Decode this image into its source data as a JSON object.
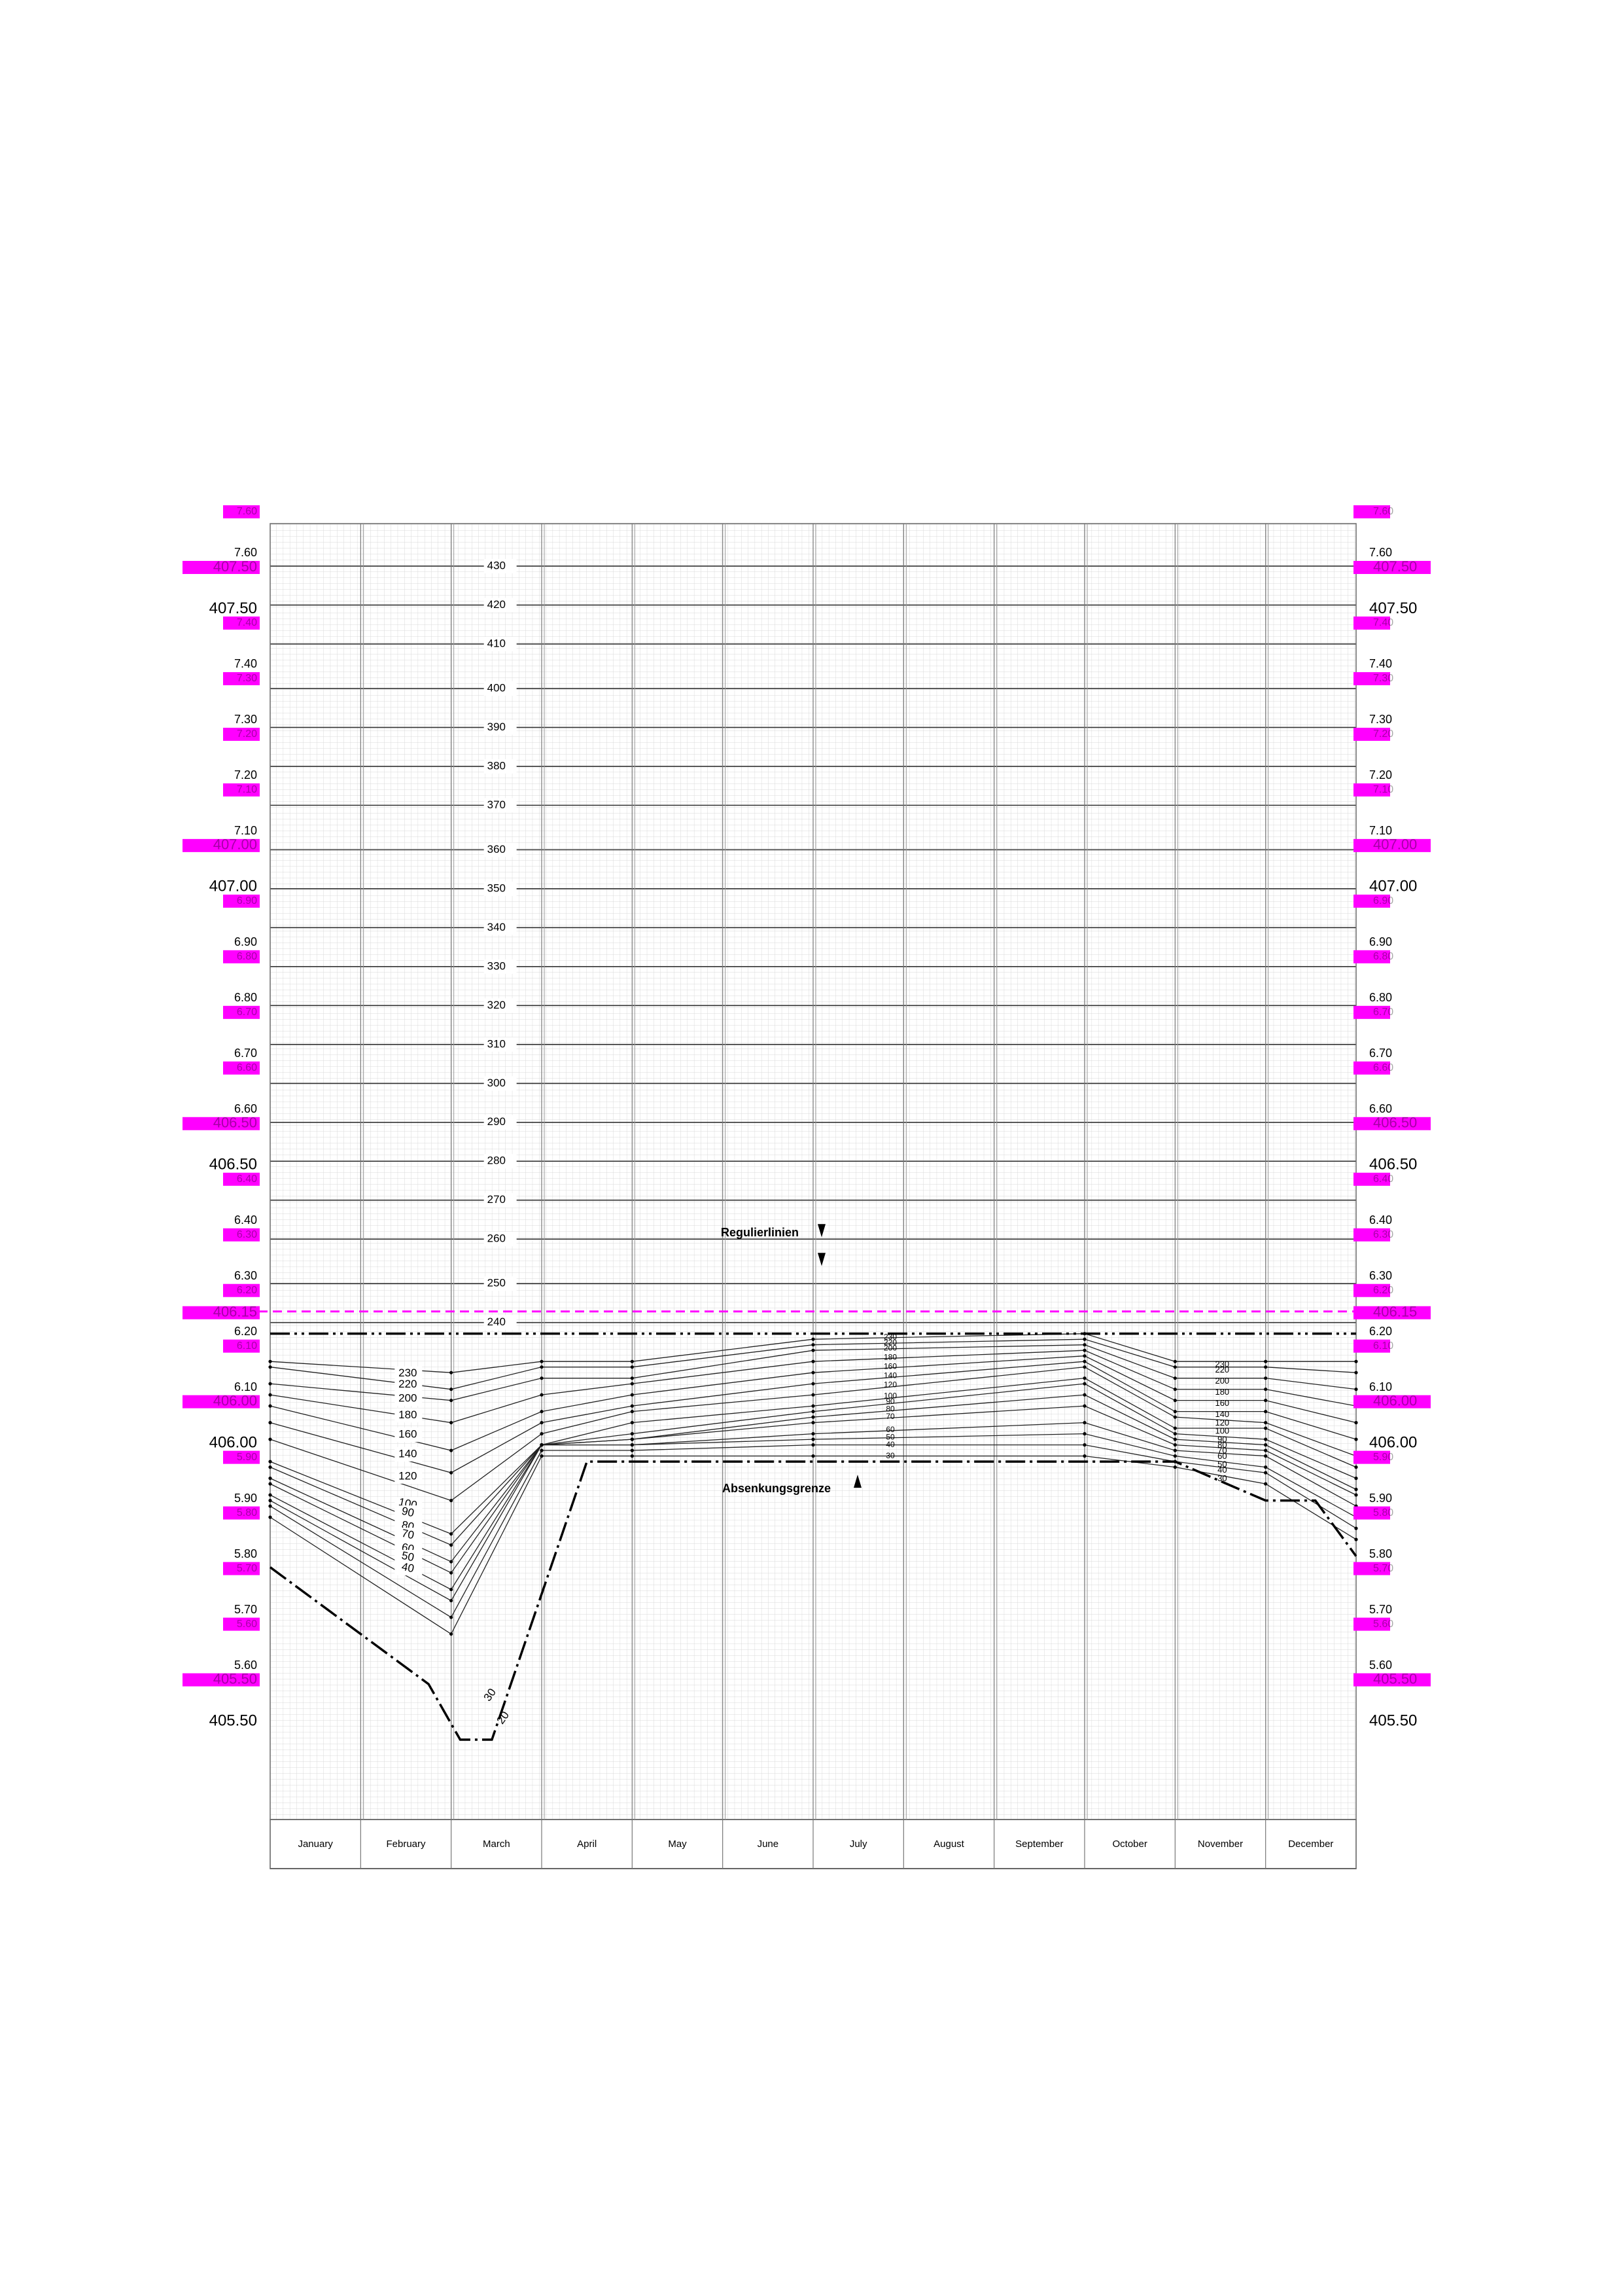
{
  "chart_data": {
    "type": "line",
    "title": "",
    "xlabel": "",
    "ylabel": "",
    "months": [
      "January",
      "February",
      "March",
      "April",
      "May",
      "June",
      "July",
      "August",
      "September",
      "October",
      "November",
      "December"
    ],
    "ylim": [
      405.3,
      407.63
    ],
    "y_axis_major_labels": [
      "7.60",
      "407.50",
      "7.40",
      "7.30",
      "7.20",
      "7.10",
      "407.00",
      "6.90",
      "6.80",
      "6.70",
      "6.60",
      "406.50",
      "6.40",
      "6.30",
      "6.20",
      "6.10",
      "406.00",
      "5.90",
      "5.80",
      "5.70",
      "5.60",
      "405.50"
    ],
    "y_axis_major_values": [
      407.6,
      407.5,
      407.4,
      407.3,
      407.2,
      407.1,
      407.0,
      406.9,
      406.8,
      406.7,
      406.6,
      406.5,
      406.4,
      406.3,
      406.2,
      406.1,
      406.0,
      405.9,
      405.8,
      405.7,
      405.6,
      405.5
    ],
    "y_axis_highlight_labels": [
      "7.60",
      "407.50",
      "7.40",
      "7.30",
      "7.20",
      "7.10",
      "407.00",
      "6.90",
      "6.80",
      "6.70",
      "6.60",
      "406.50",
      "6.40",
      "6.30",
      "6.20",
      "406.15",
      "6.10",
      "406.00",
      "5.90",
      "5.80",
      "5.70",
      "5.60",
      "405.50"
    ],
    "y_axis_highlight_values": [
      407.63,
      407.53,
      407.43,
      407.33,
      407.23,
      407.13,
      407.03,
      406.93,
      406.83,
      406.73,
      406.63,
      406.53,
      406.43,
      406.33,
      406.23,
      406.19,
      406.13,
      406.03,
      405.93,
      405.83,
      405.73,
      405.63,
      405.53
    ],
    "y_axis_extra_labels": [
      "406.15",
      "6.20"
    ],
    "flow_scale_labels": [
      "430",
      "420",
      "410",
      "400",
      "390",
      "380",
      "370",
      "360",
      "350",
      "340",
      "330",
      "320",
      "310",
      "300",
      "290",
      "280",
      "270",
      "260",
      "250",
      "240"
    ],
    "flow_scale_values": [
      407.53,
      407.46,
      407.39,
      407.31,
      407.24,
      407.17,
      407.1,
      407.02,
      406.95,
      406.88,
      406.81,
      406.74,
      406.67,
      406.6,
      406.53,
      406.46,
      406.39,
      406.32,
      406.24,
      406.17
    ],
    "highlight_color": "#ff00ff",
    "reference_line": {
      "value": 406.19,
      "style": "dashed",
      "color": "#ff00ff"
    },
    "upper_limit": {
      "value": 406.15,
      "style": "dash-dot-dot"
    },
    "annotations": [
      "Regulierlinien",
      "Absenkungsgrenze"
    ],
    "months_x": [
      0.0,
      1.0,
      1.97,
      2.47,
      3.0,
      4.0,
      5.0,
      6.0,
      7.0,
      8.0,
      9.0,
      10.0,
      10.3,
      11.0,
      11.55,
      12.0
    ],
    "absenkungsgrenze_x": [
      0.0,
      1.75,
      2.1,
      2.45,
      3.5,
      9.0,
      10.0,
      11.0,
      11.55,
      12.0
    ],
    "absenkungsgrenze_y": [
      405.73,
      405.52,
      405.42,
      405.42,
      405.92,
      405.92,
      405.92,
      405.85,
      405.85,
      405.75
    ],
    "series": [
      {
        "name": "230",
        "x": [
          0,
          2,
          3,
          4,
          6,
          9,
          10,
          11,
          12
        ],
        "y": [
          406.1,
          406.08,
          406.1,
          406.1,
          406.14,
          406.15,
          406.1,
          406.1,
          406.1
        ]
      },
      {
        "name": "220",
        "x": [
          0,
          2,
          3,
          4,
          6,
          9,
          10,
          11,
          12
        ],
        "y": [
          406.09,
          406.05,
          406.09,
          406.09,
          406.13,
          406.14,
          406.09,
          406.09,
          406.08
        ]
      },
      {
        "name": "200",
        "x": [
          0,
          2,
          3,
          4,
          6,
          9,
          10,
          11,
          12
        ],
        "y": [
          406.06,
          406.03,
          406.07,
          406.07,
          406.12,
          406.13,
          406.07,
          406.07,
          406.05
        ]
      },
      {
        "name": "180",
        "x": [
          0,
          2,
          3,
          4,
          6,
          9,
          10,
          11,
          12
        ],
        "y": [
          406.04,
          405.99,
          406.04,
          406.06,
          406.1,
          406.12,
          406.05,
          406.05,
          406.02
        ]
      },
      {
        "name": "160",
        "x": [
          0,
          2,
          3,
          4,
          6,
          9,
          10,
          11,
          12
        ],
        "y": [
          406.02,
          405.94,
          406.01,
          406.04,
          406.08,
          406.11,
          406.03,
          406.03,
          405.99
        ]
      },
      {
        "name": "140",
        "x": [
          0,
          2,
          3,
          4,
          6,
          9,
          10,
          11,
          12
        ],
        "y": [
          405.99,
          405.9,
          405.99,
          406.02,
          406.06,
          406.1,
          406.01,
          406.01,
          405.96
        ]
      },
      {
        "name": "120",
        "x": [
          0,
          2,
          3,
          4,
          6,
          9,
          10,
          11,
          12
        ],
        "y": [
          405.96,
          405.85,
          405.97,
          406.01,
          406.04,
          406.09,
          406.0,
          405.99,
          405.93
        ]
      },
      {
        "name": "100",
        "x": [
          0,
          2,
          3,
          4,
          6,
          9,
          10,
          11,
          12
        ],
        "y": [
          405.92,
          405.79,
          405.95,
          405.99,
          406.02,
          406.07,
          405.98,
          405.98,
          405.91
        ]
      },
      {
        "name": "90",
        "x": [
          0,
          2,
          3,
          4,
          6,
          9,
          10,
          11,
          12
        ],
        "y": [
          405.91,
          405.77,
          405.95,
          405.97,
          406.01,
          406.06,
          405.97,
          405.96,
          405.89
        ]
      },
      {
        "name": "80",
        "x": [
          0,
          2,
          3,
          4,
          6,
          9,
          10,
          11,
          12
        ],
        "y": [
          405.89,
          405.74,
          405.95,
          405.96,
          406.0,
          406.04,
          405.96,
          405.95,
          405.87
        ]
      },
      {
        "name": "70",
        "x": [
          0,
          2,
          3,
          4,
          6,
          9,
          10,
          11,
          12
        ],
        "y": [
          405.88,
          405.72,
          405.95,
          405.96,
          405.99,
          406.02,
          405.95,
          405.94,
          405.86
        ]
      },
      {
        "name": "60",
        "x": [
          0,
          2,
          3,
          4,
          6,
          9,
          10,
          11,
          12
        ],
        "y": [
          405.86,
          405.69,
          405.95,
          405.95,
          405.97,
          405.99,
          405.94,
          405.93,
          405.84
        ]
      },
      {
        "name": "50",
        "x": [
          0,
          2,
          3,
          4,
          6,
          9,
          10,
          11,
          12
        ],
        "y": [
          405.85,
          405.67,
          405.95,
          405.95,
          405.96,
          405.97,
          405.93,
          405.91,
          405.82
        ]
      },
      {
        "name": "40",
        "x": [
          0,
          2,
          3,
          4,
          6,
          9,
          10,
          11,
          12
        ],
        "y": [
          405.84,
          405.64,
          405.94,
          405.94,
          405.95,
          405.95,
          405.92,
          405.9,
          405.8
        ]
      },
      {
        "name": "30",
        "x": [
          0,
          2,
          3,
          4,
          6,
          9,
          10,
          11,
          12
        ],
        "y": [
          405.82,
          405.61,
          405.93,
          405.93,
          405.93,
          405.93,
          405.91,
          405.88,
          405.78
        ]
      }
    ],
    "mid_labels_left": [
      "230",
      "220",
      "200",
      "180",
      "160",
      "140",
      "120",
      "100",
      "90",
      "80",
      "70",
      "60",
      "50",
      "40"
    ],
    "mid_labels_right": [
      "230",
      "220",
      "200",
      "180",
      "160",
      "140",
      "120",
      "100",
      "90",
      "80",
      "70",
      "60",
      "50",
      "40",
      "30"
    ],
    "mar_labels": [
      "30",
      "20"
    ]
  }
}
